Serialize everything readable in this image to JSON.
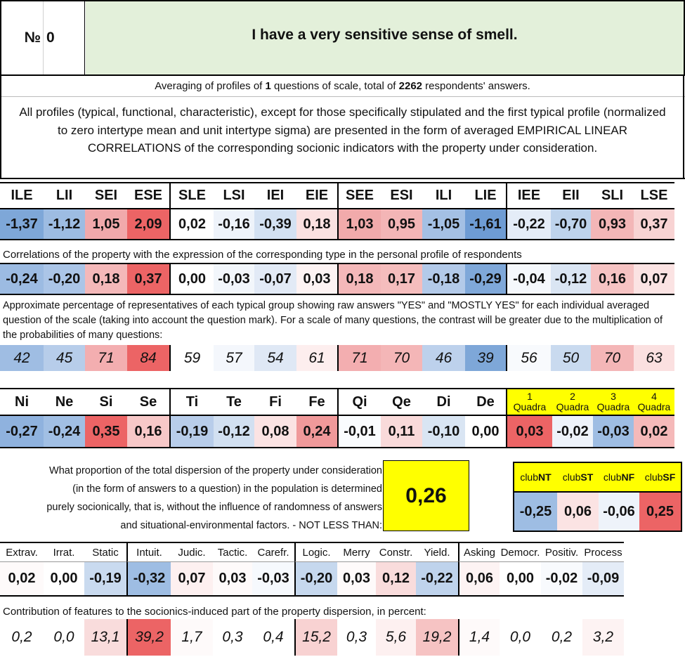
{
  "header": {
    "no_label": "№",
    "no_value": "0",
    "question": "I have a very sensitive sense of smell."
  },
  "averaging": {
    "prefix": "Averaging of profiles of ",
    "count": "1",
    "middle": " questions of scale, total of ",
    "total": "2262",
    "suffix": " respondents' answers."
  },
  "description": "All profiles (typical, functional, characteristic), except for those specifically stipulated and the first typical profile (normalized to zero intertype mean and unit intertype sigma) are presented in the form of averaged EMPIRICAL LINEAR CORRELATIONS of the corresponding socionic indicators with the property under consideration.",
  "types": {
    "headers": [
      "ILE",
      "LII",
      "SEI",
      "ESE",
      "SLE",
      "LSI",
      "IEI",
      "EIE",
      "SEE",
      "ESI",
      "ILI",
      "LIE",
      "IEE",
      "EII",
      "SLI",
      "LSE"
    ],
    "profile": [
      "-1,37",
      "-1,12",
      "1,05",
      "2,09",
      "0,02",
      "-0,16",
      "-0,39",
      "0,18",
      "1,03",
      "0,95",
      "-1,05",
      "-1,61",
      "-0,22",
      "-0,70",
      "0,93",
      "0,37"
    ],
    "profile_colors": [
      "#7ea7d8",
      "#9dbce2",
      "#f1a9ab",
      "#ec6465",
      "#ffffff",
      "#eef3fa",
      "#d3e1f2",
      "#fbe1e1",
      "#f1aaab",
      "#f3b5b6",
      "#a4c0e4",
      "#6e9cd4",
      "#e4ecf7",
      "#bed3ec",
      "#f3b6b7",
      "#f8d3d3"
    ],
    "corr_note": "Correlations of the property with the expression of the corresponding type in the personal profile of respondents",
    "corr": [
      "-0,24",
      "-0,20",
      "0,18",
      "0,37",
      "0,00",
      "-0,03",
      "-0,07",
      "0,03",
      "0,18",
      "0,17",
      "-0,18",
      "-0,29",
      "-0,04",
      "-0,12",
      "0,16",
      "0,07"
    ],
    "corr_colors": [
      "#9cbbe2",
      "#abc5e7",
      "#f4b8b9",
      "#ec6465",
      "#ffffff",
      "#f2f6fb",
      "#e2eaf6",
      "#fdf3f3",
      "#f4b8b9",
      "#f5bdbd",
      "#b3cae9",
      "#7fa8d9",
      "#f5f8fc",
      "#dae5f3",
      "#f6c3c3",
      "#fbe3e3"
    ],
    "pct_note": "Approximate percentage of representatives of each typical group showing raw answers \"YES\" and \"MOSTLY YES\" for each individual averaged question of the scale (taking into account the question mark). For a scale of many questions, the contrast will be greater due to the multiplication of the probabilities of many questions:",
    "pct": [
      "42",
      "45",
      "71",
      "84",
      "59",
      "57",
      "54",
      "61",
      "71",
      "70",
      "46",
      "39",
      "56",
      "50",
      "70",
      "63"
    ],
    "pct_colors": [
      "#9fbde3",
      "#b7cdea",
      "#f3aeb0",
      "#ec6465",
      "#ffffff",
      "#f4f7fc",
      "#dfe8f5",
      "#fdeeee",
      "#f3aeb0",
      "#f4b6b7",
      "#bdd1ec",
      "#7ea7d8",
      "#f8fafd",
      "#c9daef",
      "#f4b6b7",
      "#fbe0e0"
    ]
  },
  "functions": {
    "headers": [
      "Ni",
      "Ne",
      "Si",
      "Se",
      "Ti",
      "Te",
      "Fi",
      "Fe",
      "Qi",
      "Qe",
      "Di",
      "De"
    ],
    "values": [
      "-0,27",
      "-0,24",
      "0,35",
      "0,16",
      "-0,19",
      "-0,12",
      "0,08",
      "0,24",
      "-0,01",
      "0,11",
      "-0,10",
      "0,00"
    ],
    "colors": [
      "#8fb2de",
      "#a1bfe4",
      "#ec6465",
      "#f7c8c8",
      "#b8cdea",
      "#d2e0f1",
      "#fbe3e3",
      "#f0999a",
      "#fafcfe",
      "#f9dada",
      "#d9e5f3",
      "#ffffff"
    ]
  },
  "quadras": {
    "headers": [
      {
        "num": "1",
        "label": "Quadra"
      },
      {
        "num": "2",
        "label": "Quadra"
      },
      {
        "num": "3",
        "label": "Quadra"
      },
      {
        "num": "4",
        "label": "Quadra"
      }
    ],
    "values": [
      "0,03",
      "-0,02",
      "-0,03",
      "0,02"
    ],
    "colors": [
      "#ec6465",
      "#eef3fa",
      "#9ebde3",
      "#f5b9b9"
    ],
    "header_color": "#ffff00"
  },
  "dispersion": {
    "note_lines": [
      "What proportion of the total dispersion of the property under consideration",
      "(in the form of answers to a question) in the population is determined",
      "purely socionically, that is, without the influence of randomness of answers",
      "and situational-environmental factors. - NOT LESS THAN:"
    ],
    "value": "0,26",
    "box_color": "#ffff00"
  },
  "clubs": {
    "headers": [
      {
        "pre": "club",
        "bold": "NT"
      },
      {
        "pre": "club",
        "bold": "ST"
      },
      {
        "pre": "club",
        "bold": "NF"
      },
      {
        "pre": "club",
        "bold": "SF"
      }
    ],
    "values": [
      "-0,25",
      "0,06",
      "-0,06",
      "0,25"
    ],
    "colors": [
      "#9ebde3",
      "#fbe3e3",
      "#eef3fa",
      "#ec6465"
    ],
    "header_color": "#ffff00"
  },
  "features": {
    "headers": [
      "Extrav.",
      "Irrat.",
      "Static",
      "Intuit.",
      "Judic.",
      "Tactic.",
      "Carefr.",
      "Logic.",
      "Merry",
      "Constr.",
      "Yield.",
      "Asking",
      "Democr.",
      "Positiv.",
      "Process"
    ],
    "values": [
      "0,02",
      "0,00",
      "-0,19",
      "-0,32",
      "0,07",
      "0,03",
      "-0,03",
      "-0,20",
      "0,03",
      "0,12",
      "-0,22",
      "0,06",
      "0,00",
      "-0,02",
      "-0,09"
    ],
    "colors": [
      "#fefafa",
      "#ffffff",
      "#c9daef",
      "#9ebde3",
      "#fdf0f0",
      "#fefafa",
      "#f6f9fd",
      "#c6d8ee",
      "#fefafa",
      "#f9dcdc",
      "#bfd3ec",
      "#fdf3f3",
      "#ffffff",
      "#f8fafd",
      "#e4ecf7"
    ],
    "contrib_note": "Contribution of features to the sociоnics-induced part of the property dispersion, in percent:",
    "contrib": [
      "0,2",
      "0,0",
      "13,1",
      "39,2",
      "1,7",
      "0,3",
      "0,4",
      "15,2",
      "0,3",
      "5,6",
      "19,2",
      "1,4",
      "0,0",
      "0,2",
      "3,2"
    ],
    "contrib_colors": [
      "#ffffff",
      "#ffffff",
      "#f9dcdc",
      "#ec6465",
      "#fefafa",
      "#ffffff",
      "#ffffff",
      "#f8d2d2",
      "#ffffff",
      "#fdf0f0",
      "#f6c3c3",
      "#fefafa",
      "#ffffff",
      "#ffffff",
      "#fdf3f3"
    ]
  }
}
